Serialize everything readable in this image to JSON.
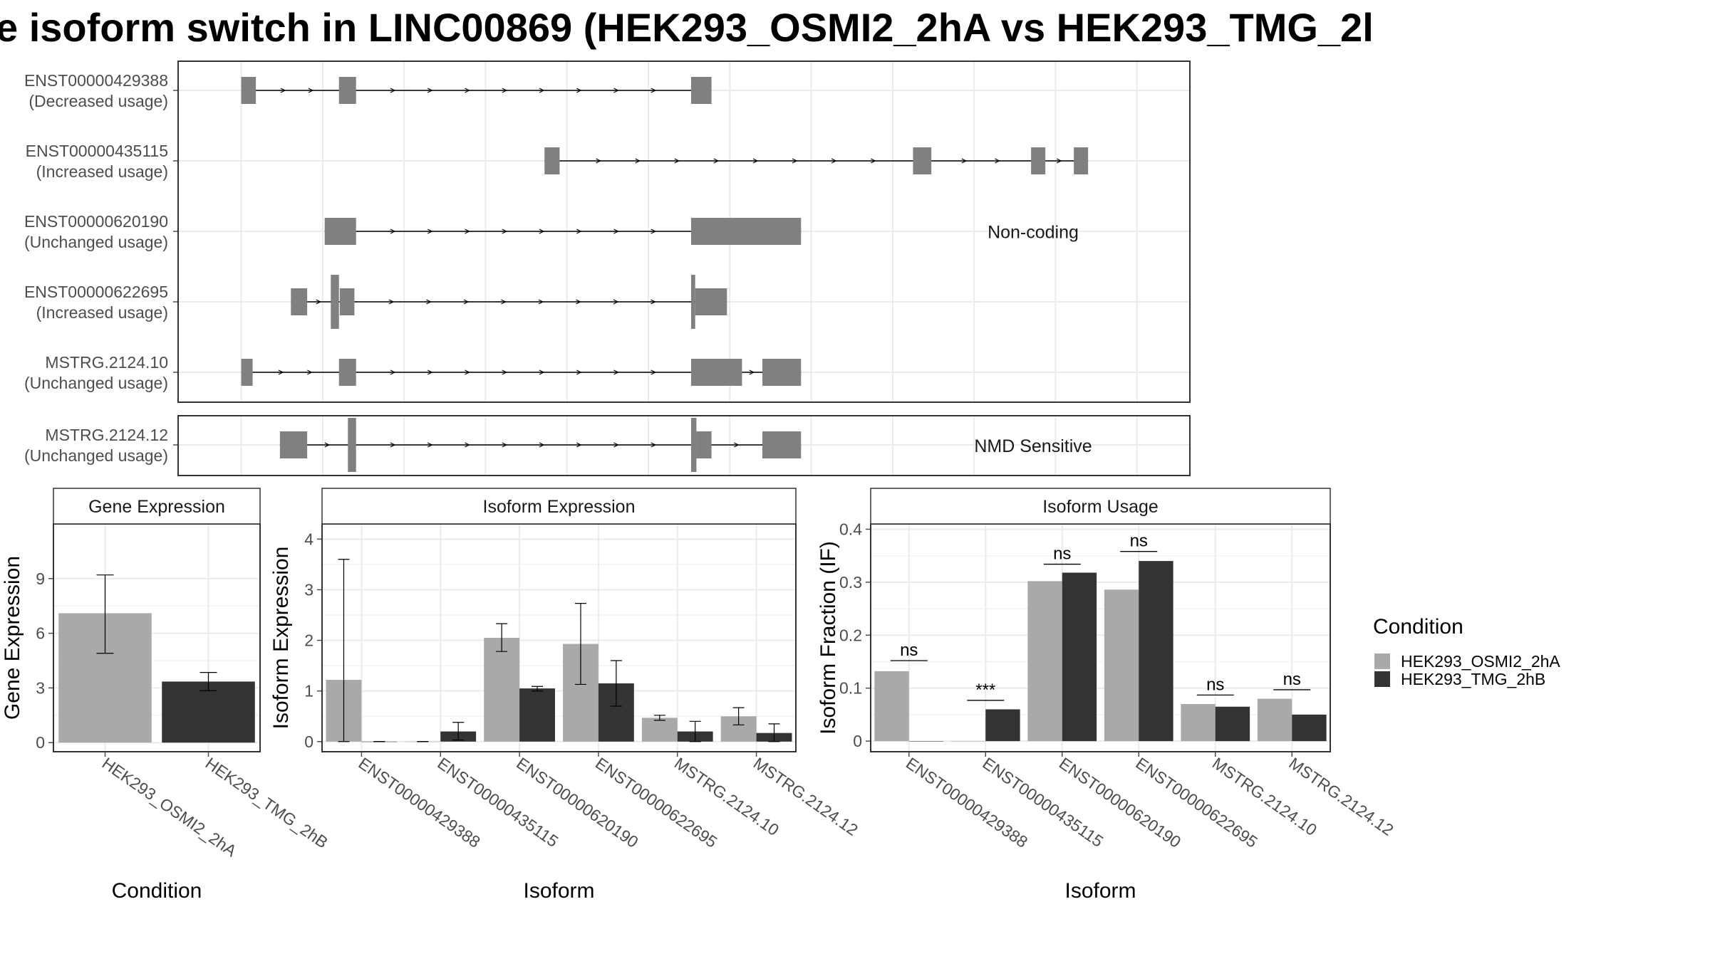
{
  "title": "e isoform switch in LINC00869 (HEK293_OSMI2_2hA vs HEK293_TMG_2l",
  "colors": {
    "cond1": "#a9a9a9",
    "cond2": "#333333",
    "exon": "#808080",
    "panel_border": "#333333",
    "strip_border": "#c7c7c7",
    "grid": "#ebebeb",
    "axis_text": "#4d4d4d"
  },
  "structure": {
    "panels": [
      {
        "label": "Non-coding",
        "transcripts": [
          {
            "id": "ENST00000429388",
            "usage": "(Decreased usage)",
            "exons": [
              [
                0.0,
                0.36
              ],
              [
                2.4,
                2.82
              ],
              [
                11.05,
                11.55
              ]
            ]
          },
          {
            "id": "ENST00000435115",
            "usage": "(Increased usage)",
            "exons": [
              [
                7.45,
                7.82
              ],
              [
                16.5,
                16.95
              ],
              [
                19.4,
                19.75
              ],
              [
                20.45,
                20.8
              ]
            ]
          },
          {
            "id": "ENST00000620190",
            "usage": "(Unchanged usage)",
            "exons": [
              [
                2.05,
                2.82
              ],
              [
                11.05,
                13.75
              ]
            ]
          },
          {
            "id": "ENST00000622695",
            "usage": "(Increased usage)",
            "exons": [
              [
                1.22,
                1.62
              ],
              [
                2.2,
                2.4
              ],
              [
                2.42,
                2.78
              ],
              [
                11.05,
                11.15
              ],
              [
                11.15,
                11.93
              ]
            ]
          },
          {
            "id": "MSTRG.2124.10",
            "usage": "(Unchanged usage)",
            "exons": [
              [
                0.0,
                0.28
              ],
              [
                2.4,
                2.82
              ],
              [
                11.05,
                12.3
              ],
              [
                12.8,
                13.75
              ]
            ]
          }
        ]
      },
      {
        "label": "NMD Sensitive",
        "transcripts": [
          {
            "id": "MSTRG.2124.12",
            "usage": "(Unchanged usage)",
            "exons": [
              [
                0.95,
                1.62
              ],
              [
                2.62,
                2.82
              ],
              [
                11.05,
                11.18
              ],
              [
                11.18,
                11.55
              ],
              [
                12.8,
                13.75
              ]
            ]
          }
        ]
      }
    ]
  },
  "legend": {
    "title": "Condition",
    "items": [
      "HEK293_OSMI2_2hA",
      "HEK293_TMG_2hB"
    ]
  },
  "chart_data": [
    {
      "type": "bar",
      "title": "Gene Expression",
      "xlabel": "Condition",
      "ylabel": "Gene Expression",
      "categories": [
        "HEK293_OSMI2_2hA",
        "HEK293_TMG_2hB"
      ],
      "series": [
        {
          "name": "HEK293_OSMI2_2hA",
          "values": [
            7.1,
            null
          ]
        },
        {
          "name": "HEK293_TMG_2hB",
          "values": [
            null,
            3.35
          ]
        }
      ],
      "error_bars": [
        [
          4.9,
          9.2
        ],
        [
          2.85,
          3.85
        ]
      ],
      "ylim": [
        -0.5,
        12.0
      ],
      "yticks": [
        0,
        3,
        6,
        9
      ],
      "grid": true
    },
    {
      "type": "bar",
      "title": "Isoform Expression",
      "xlabel": "Isoform",
      "ylabel": "Isoform Expression",
      "categories": [
        "ENST00000429388",
        "ENST00000435115",
        "ENST00000620190",
        "ENST00000622695",
        "MSTRG.2124.10",
        "MSTRG.2124.12"
      ],
      "series": [
        {
          "name": "HEK293_OSMI2_2hA",
          "values": [
            1.22,
            0.0,
            2.05,
            1.93,
            0.47,
            0.5
          ],
          "errors": [
            [
              0.0,
              3.6
            ],
            [
              0.0,
              0.0
            ],
            [
              1.78,
              2.33
            ],
            [
              1.13,
              2.73
            ],
            [
              0.42,
              0.52
            ],
            [
              0.33,
              0.67
            ]
          ]
        },
        {
          "name": "HEK293_TMG_2hB",
          "values": [
            0.0,
            0.2,
            1.05,
            1.15,
            0.2,
            0.17
          ],
          "errors": [
            [
              0.0,
              0.0
            ],
            [
              0.03,
              0.38
            ],
            [
              1.0,
              1.09
            ],
            [
              0.7,
              1.6
            ],
            [
              0.0,
              0.4
            ],
            [
              0.0,
              0.35
            ]
          ]
        }
      ],
      "ylim": [
        -0.2,
        4.3
      ],
      "yticks": [
        0,
        1,
        2,
        3,
        4
      ],
      "grid": true
    },
    {
      "type": "bar",
      "title": "Isoform Usage",
      "xlabel": "Isoform",
      "ylabel": "Isoform Fraction (IF)",
      "categories": [
        "ENST00000429388",
        "ENST00000435115",
        "ENST00000620190",
        "ENST00000622695",
        "MSTRG.2124.10",
        "MSTRG.2124.12"
      ],
      "series": [
        {
          "name": "HEK293_OSMI2_2hA",
          "values": [
            0.132,
            0.0,
            0.302,
            0.286,
            0.07,
            0.08
          ]
        },
        {
          "name": "HEK293_TMG_2hB",
          "values": [
            0.0,
            0.06,
            0.318,
            0.34,
            0.065,
            0.05
          ]
        }
      ],
      "significance": [
        "ns",
        "***",
        "ns",
        "ns",
        "ns",
        "ns"
      ],
      "significance_y": [
        0.152,
        0.077,
        0.334,
        0.358,
        0.087,
        0.097
      ],
      "ylim": [
        -0.02,
        0.41
      ],
      "yticks": [
        0.0,
        0.1,
        0.2,
        0.3,
        0.4
      ],
      "grid": true
    }
  ]
}
